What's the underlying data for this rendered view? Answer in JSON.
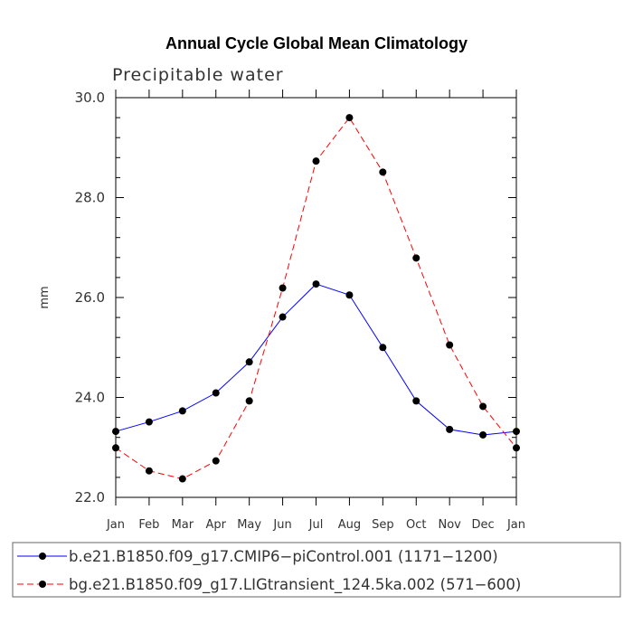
{
  "chart_data": {
    "type": "line",
    "title": "Annual Cycle Global Mean Climatology",
    "subtitle": "Precipitable water",
    "ylabel": "mm",
    "xlabel": "",
    "ylim": [
      22.0,
      30.0
    ],
    "yticks": [
      22.0,
      24.0,
      26.0,
      28.0,
      30.0
    ],
    "ytick_labels": [
      "22.0",
      "24.0",
      "26.0",
      "28.0",
      "30.0"
    ],
    "categories": [
      "Jan",
      "Feb",
      "Mar",
      "Apr",
      "May",
      "Jun",
      "Jul",
      "Aug",
      "Sep",
      "Oct",
      "Nov",
      "Dec",
      "Jan"
    ],
    "series": [
      {
        "name": "b.e21.B1850.f09_g17.CMIP6-piControl.001 (1171-1200)",
        "legend_label": "b.e21.B1850.f09_g17.CMIP6−piControl.001 (1171−1200)",
        "color": "#0000ff",
        "dash": "solid",
        "values": [
          23.32,
          23.51,
          23.73,
          24.09,
          24.71,
          25.61,
          26.27,
          26.05,
          25.0,
          23.93,
          23.36,
          23.25,
          23.32
        ]
      },
      {
        "name": "bg.e21.B1850.f09_g17.LIGtransient_124.5ka.002 (571-600)",
        "legend_label": "bg.e21.B1850.f09_g17.LIGtransient_124.5ka.002 (571−600)",
        "color": "#ff0000",
        "dash": "dashed",
        "values": [
          22.99,
          22.53,
          22.37,
          22.73,
          23.93,
          26.19,
          28.73,
          29.6,
          28.51,
          26.79,
          25.05,
          23.82,
          22.99
        ]
      }
    ],
    "marker_color": "#000000",
    "legend_position": "bottom"
  }
}
